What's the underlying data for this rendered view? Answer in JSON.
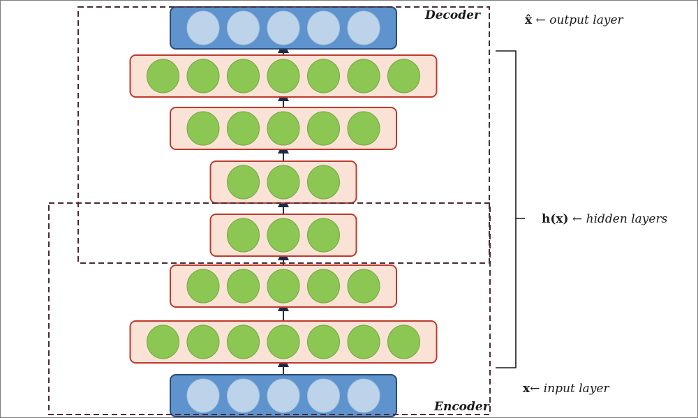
{
  "layers": [
    {
      "kind": "input",
      "neurons": 5
    },
    {
      "kind": "hidden",
      "neurons": 7
    },
    {
      "kind": "hidden",
      "neurons": 5
    },
    {
      "kind": "hidden",
      "neurons": 3
    },
    {
      "kind": "hidden",
      "neurons": 3
    },
    {
      "kind": "hidden",
      "neurons": 5
    },
    {
      "kind": "hidden",
      "neurons": 7
    },
    {
      "kind": "output",
      "neurons": 5
    }
  ],
  "regions": {
    "decoder": "Decoder",
    "encoder": "Encoder"
  },
  "annotations": {
    "output": {
      "symbol": "x̂",
      "arrow": " ← ",
      "text": "output layer"
    },
    "hidden": {
      "symbol": "h(x)",
      "arrow": " ← ",
      "text": "hidden layers"
    },
    "input": {
      "symbol": "x",
      "arrow": "← ",
      "text": "input layer"
    }
  },
  "colors": {
    "io_fill": "#5e93cd",
    "io_stroke": "#2a4a76",
    "io_neuron": "#bcd3ea",
    "hidden_fill": "#fae3d6",
    "hidden_stroke": "#c0392b",
    "hidden_neuron": "#8cc653",
    "frame": "#4a2a33",
    "arrow": "#1f2a44"
  }
}
